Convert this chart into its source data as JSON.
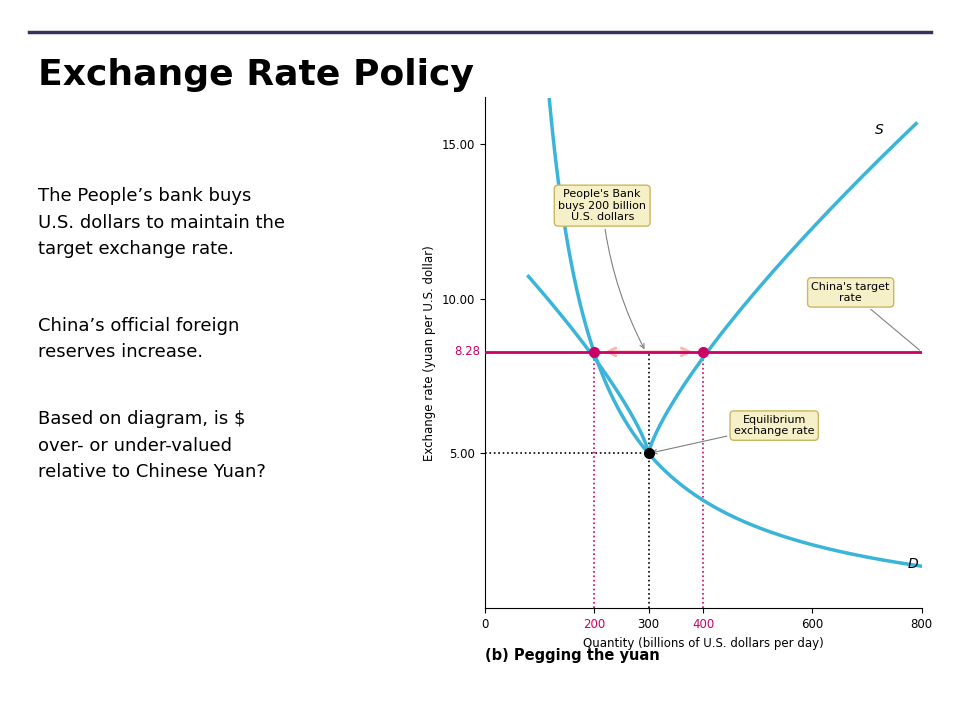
{
  "title": "Exchange Rate Policy",
  "title_fontsize": 26,
  "title_color": "#000000",
  "bg_color": "#ffffff",
  "line_color": "#3ab4d8",
  "target_line_color": "#cc0066",
  "target_rate": 8.28,
  "equilibrium_qty": 300,
  "equilibrium_rate": 5.0,
  "supply_qty_at_target": 400,
  "demand_qty_at_target": 200,
  "xlabel": "Quantity (billions of U.S. dollars per day)",
  "ylabel": "Exchange rate (yuan per U.S. dollar)",
  "xlim": [
    0,
    800
  ],
  "ylim": [
    0,
    16.5
  ],
  "xticks": [
    0,
    200,
    300,
    400,
    600,
    800
  ],
  "yticks": [
    5.0,
    10.0,
    15.0
  ],
  "ytick_labels": [
    "5.00",
    "10.00",
    "15.00"
  ],
  "caption": "(b) Pegging the yuan",
  "para1": "The People’s bank buys\nU.S. dollars to maintain the\ntarget exchange rate.",
  "para2": "China’s official foreign\nreserves increase.",
  "para3": "Based on diagram, is $\nover- or under-valued\nrelative to Chinese Yuan?",
  "annotation_box1": "People's Bank\nbuys 200 billion\nU.S. dollars",
  "annotation_box2": "China's target\nrate",
  "annotation_box3": "Equilibrium\nexchange rate",
  "box_facecolor": "#f5f0c8",
  "box_edgecolor": "#c8b860",
  "header_line_color": "#3a3060",
  "S_label": "S",
  "D_label": "D",
  "pink_tick_values": [
    200,
    400
  ],
  "black_tick_values": [
    0,
    300,
    600,
    800
  ]
}
